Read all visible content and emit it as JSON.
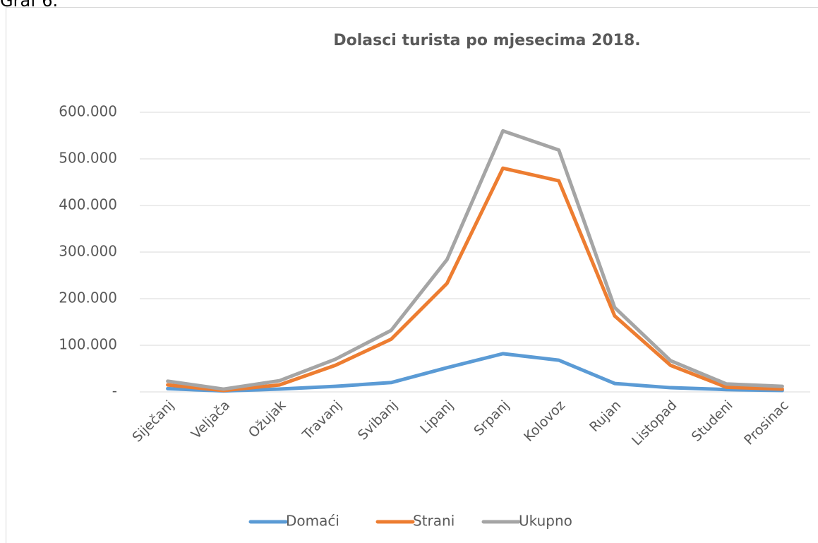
{
  "caption": "Graf 6.",
  "chart_data": {
    "type": "line",
    "title": "Dolasci turista po mjesecima 2018.",
    "categories": [
      "Siječanj",
      "Veljača",
      "Ožujak",
      "Travanj",
      "Svibanj",
      "Lipanj",
      "Srpanj",
      "Kolovoz",
      "Rujan",
      "Listopad",
      "Studeni",
      "Prosinac"
    ],
    "series": [
      {
        "name": "Domaći",
        "color": "#5b9bd5",
        "values": [
          7000,
          2000,
          6000,
          12000,
          20000,
          52000,
          82000,
          68000,
          18000,
          9000,
          5000,
          3000
        ]
      },
      {
        "name": "Strani",
        "color": "#ed7d31",
        "values": [
          15000,
          3000,
          15000,
          57000,
          113000,
          233000,
          480000,
          453000,
          163000,
          57000,
          10000,
          6000
        ]
      },
      {
        "name": "Ukupno",
        "color": "#a5a5a5",
        "values": [
          23000,
          6000,
          24000,
          70000,
          132000,
          284000,
          560000,
          519000,
          181000,
          67000,
          17000,
          12000
        ]
      }
    ],
    "ylim": [
      0,
      600000
    ],
    "yticks": [
      {
        "value": 0,
        "label": "-"
      },
      {
        "value": 100000,
        "label": "100.000"
      },
      {
        "value": 200000,
        "label": "200.000"
      },
      {
        "value": 300000,
        "label": "300.000"
      },
      {
        "value": 400000,
        "label": "400.000"
      },
      {
        "value": 500000,
        "label": "500.000"
      },
      {
        "value": 600000,
        "label": "600.000"
      }
    ],
    "grid": true,
    "legend": "bottom"
  }
}
